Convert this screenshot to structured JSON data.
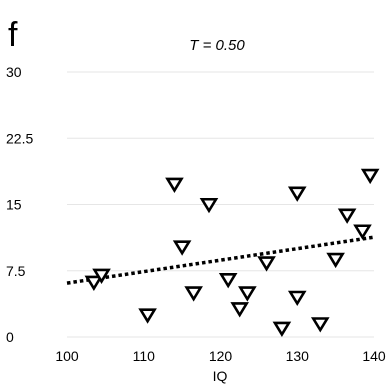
{
  "panel_label": "f",
  "chart_data": {
    "type": "scatter",
    "title": "T = 0.50",
    "xlabel": "IQ",
    "ylabel": "",
    "xlim": [
      100,
      140
    ],
    "ylim": [
      0,
      30
    ],
    "x_ticks": [
      100,
      110,
      120,
      130,
      140
    ],
    "x_tick_labels": [
      "100",
      "110",
      "120",
      "130",
      "140"
    ],
    "y_ticks": [
      0,
      7.5,
      15,
      22.5,
      30
    ],
    "y_tick_labels": [
      "0",
      "7.5",
      "15",
      "22.5",
      "30"
    ],
    "grid": true,
    "grid_axis": "y",
    "marker": "triangle-down-open",
    "series": [
      {
        "x": [
          103.5,
          104.5,
          110.5,
          114.0,
          115.0,
          116.5,
          118.5,
          121.0,
          122.5,
          123.5,
          126.0,
          128.0,
          130.0,
          130.0,
          133.0,
          135.0,
          136.5,
          138.5,
          139.5
        ],
        "y": [
          6.2,
          7.0,
          2.5,
          17.3,
          10.2,
          5.0,
          15.0,
          6.5,
          3.2,
          5.0,
          8.4,
          1.0,
          4.5,
          16.3,
          1.5,
          8.8,
          13.8,
          12.0,
          18.3
        ]
      }
    ],
    "trendline": {
      "type": "linear",
      "style": "dotted",
      "x": [
        100,
        140
      ],
      "y": [
        6.1,
        11.3
      ]
    }
  },
  "colors": {
    "ink": "#000000",
    "grid": "#e6e6e6",
    "background": "#ffffff"
  }
}
